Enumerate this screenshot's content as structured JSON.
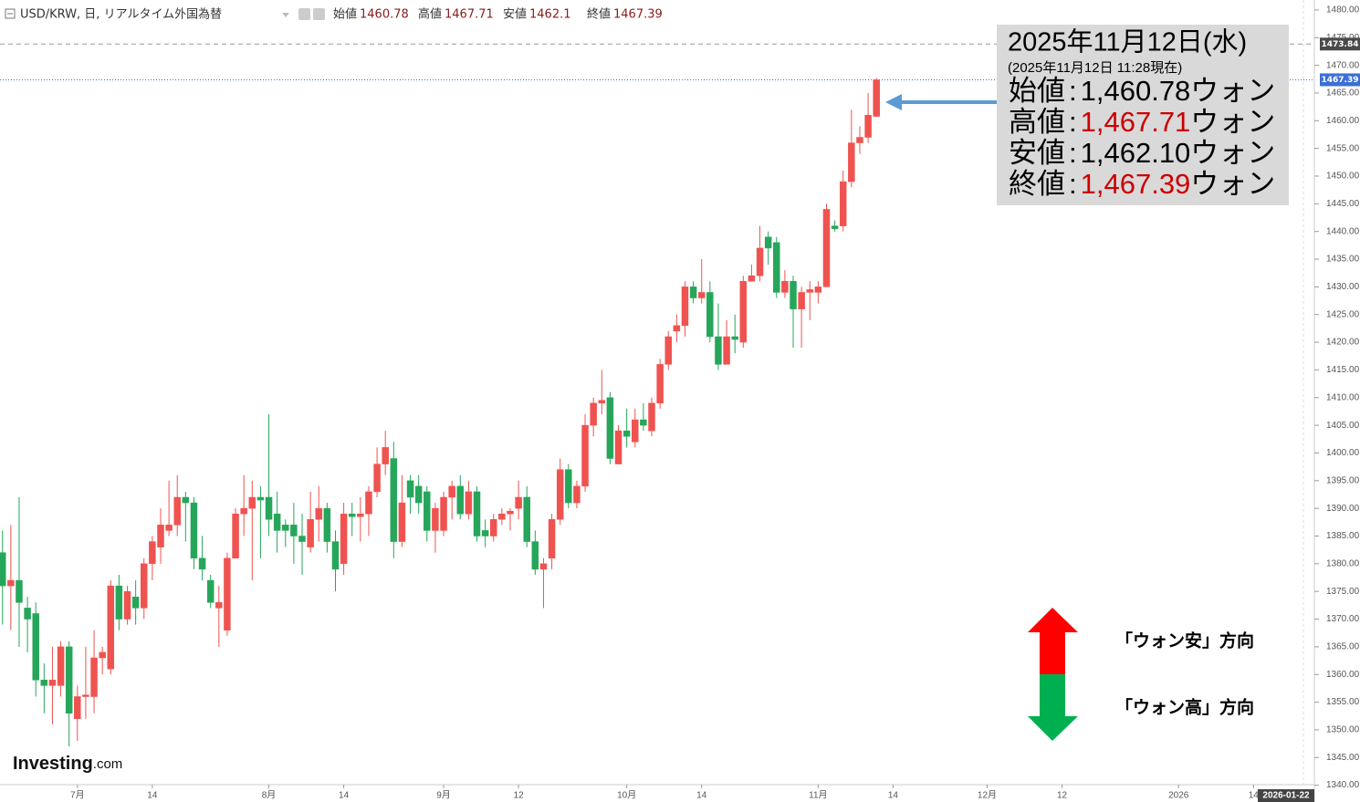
{
  "chart_data": {
    "type": "candlestick",
    "title": "USD/KRW, 日, リアルタイム外国為替",
    "ohlc_labels": [
      "始値",
      "高値",
      "安値",
      "終値"
    ],
    "up_color": "#ef5350",
    "down_color": "#26a65b",
    "open": [
      1382,
      1376,
      1377,
      1372,
      1371,
      1359,
      1358,
      1358,
      1365,
      1352,
      1356,
      1356,
      1363,
      1361,
      1376,
      1370,
      1374,
      1372,
      1380,
      1383,
      1386,
      1387,
      1392,
      1391,
      1381,
      1377,
      1372,
      1368,
      1381,
      1389,
      1390,
      1392,
      1392,
      1389,
      1387,
      1387,
      1385,
      1383,
      1388,
      1390,
      1384,
      1380,
      1389,
      1388.5,
      1389,
      1393,
      1398,
      1399,
      1384,
      1395,
      1394,
      1393,
      1386,
      1386,
      1392,
      1394,
      1389,
      1393,
      1386,
      1385,
      1388,
      1389,
      1390,
      1392,
      1384,
      1379,
      1381,
      1388,
      1397,
      1391,
      1394,
      1405,
      1409,
      1410,
      1398,
      1404,
      1402,
      1406,
      1404,
      1409,
      1416,
      1422,
      1423,
      1430,
      1428,
      1429,
      1421,
      1416,
      1421,
      1420,
      1431,
      1432,
      1439,
      1438,
      1429,
      1431,
      1426,
      1429,
      1429,
      1430,
      1441,
      1441,
      1449,
      1456,
      1457,
      1460.78
    ],
    "high": [
      1386,
      1387,
      1392,
      1374,
      1373,
      1362,
      1365,
      1366,
      1366,
      1358,
      1365,
      1368,
      1365,
      1377,
      1378,
      1376,
      1377,
      1381,
      1385,
      1390,
      1395,
      1396,
      1393,
      1392,
      1385,
      1378,
      1376,
      1382,
      1390,
      1396,
      1395,
      1394,
      1407,
      1393,
      1388,
      1391,
      1389,
      1393,
      1394,
      1391,
      1386,
      1391,
      1391,
      1392,
      1394,
      1401,
      1404,
      1402,
      1396,
      1396,
      1396,
      1394,
      1391,
      1393,
      1395,
      1396,
      1395,
      1394,
      1388,
      1389,
      1390,
      1390,
      1395,
      1394,
      1386,
      1381,
      1389,
      1399,
      1398,
      1395,
      1407,
      1410,
      1415,
      1411,
      1405,
      1408,
      1408,
      1409,
      1410,
      1417,
      1422,
      1425,
      1431,
      1431,
      1435,
      1431,
      1427,
      1424,
      1425,
      1432,
      1434,
      1441,
      1440,
      1439,
      1433,
      1432,
      1430,
      1431,
      1431,
      1445,
      1442,
      1451,
      1462,
      1459,
      1465,
      1467.71
    ],
    "low": [
      1369,
      1368,
      1365,
      1364,
      1356,
      1353,
      1351,
      1356,
      1347,
      1348,
      1352,
      1353,
      1360,
      1360,
      1368,
      1369,
      1369,
      1370,
      1377,
      1380,
      1385,
      1385,
      1384,
      1379,
      1377,
      1372,
      1365,
      1367,
      1381,
      1385,
      1377,
      1381,
      1385,
      1382,
      1383,
      1380,
      1378,
      1382,
      1384,
      1382,
      1375,
      1378,
      1385,
      1384,
      1385,
      1392,
      1396,
      1381,
      1383,
      1389,
      1389,
      1384,
      1382,
      1385,
      1388,
      1388,
      1388,
      1384,
      1383,
      1384,
      1387,
      1386,
      1388,
      1383,
      1378,
      1372,
      1379,
      1387,
      1390,
      1390,
      1393,
      1403,
      1407,
      1398,
      1398,
      1401,
      1401,
      1404,
      1403,
      1408,
      1415,
      1420,
      1421,
      1427,
      1427,
      1420,
      1415,
      1416,
      1418,
      1419,
      1431,
      1431,
      1434,
      1428,
      1428,
      1419,
      1419,
      1424,
      1427,
      1430,
      1440,
      1440,
      1448,
      1454,
      1456,
      1462.1
    ],
    "close": [
      1376,
      1377,
      1373,
      1370,
      1359,
      1358,
      1359,
      1365,
      1353,
      1356,
      1356.3,
      1363,
      1364,
      1376,
      1370,
      1375,
      1372,
      1380,
      1384,
      1387,
      1387,
      1392,
      1391,
      1381,
      1379,
      1373,
      1373,
      1381,
      1389,
      1390,
      1392,
      1391.5,
      1388,
      1386,
      1386,
      1385,
      1384,
      1388,
      1390,
      1384,
      1379,
      1389,
      1388.5,
      1389,
      1393,
      1398,
      1401,
      1384,
      1391,
      1392,
      1391,
      1386,
      1390,
      1392,
      1394,
      1389,
      1393,
      1385,
      1385,
      1388,
      1389,
      1389.5,
      1392,
      1384,
      1379,
      1380,
      1388,
      1397,
      1391,
      1394,
      1405,
      1409,
      1409.5,
      1399,
      1404,
      1403,
      1406,
      1405,
      1409,
      1416,
      1421,
      1423,
      1430,
      1428,
      1429,
      1421,
      1416,
      1421,
      1420.5,
      1431,
      1432,
      1437,
      1437,
      1429,
      1431,
      1426,
      1429,
      1429.5,
      1430,
      1444,
      1440.5,
      1449,
      1456,
      1457,
      1461,
      1467.39
    ],
    "xlim": [
      -0.3,
      156.3
    ],
    "xticks": [
      {
        "value": 9,
        "label": "7月"
      },
      {
        "value": 18,
        "label": "14"
      },
      {
        "value": 32,
        "label": "8月"
      },
      {
        "value": 41,
        "label": "14"
      },
      {
        "value": 53,
        "label": "9月"
      },
      {
        "value": 62,
        "label": "12"
      },
      {
        "value": 75,
        "label": "10月"
      },
      {
        "value": 84,
        "label": "14"
      },
      {
        "value": 98,
        "label": "11月"
      },
      {
        "value": 107,
        "label": "14"
      },
      {
        "value": 118.3,
        "label": "12月"
      },
      {
        "value": 127.3,
        "label": "12"
      },
      {
        "value": 141.3,
        "label": "2026"
      },
      {
        "value": 150.3,
        "label": "14"
      }
    ],
    "cursor_date": "2026-01-22",
    "ylim": [
      1340.1,
      1481.8
    ],
    "yticks": [
      {
        "value": 1340,
        "label": "1340.00"
      },
      {
        "value": 1345,
        "label": "1345.00"
      },
      {
        "value": 1350,
        "label": "1350.00"
      },
      {
        "value": 1355,
        "label": "1355.00"
      },
      {
        "value": 1360,
        "label": "1360.00"
      },
      {
        "value": 1365,
        "label": "1365.00"
      },
      {
        "value": 1370,
        "label": "1370.00"
      },
      {
        "value": 1375,
        "label": "1375.00"
      },
      {
        "value": 1380,
        "label": "1380.00"
      },
      {
        "value": 1385,
        "label": "1385.00"
      },
      {
        "value": 1390,
        "label": "1390.00"
      },
      {
        "value": 1395,
        "label": "1395.00"
      },
      {
        "value": 1400,
        "label": "1400.00"
      },
      {
        "value": 1405,
        "label": "1405.00"
      },
      {
        "value": 1410,
        "label": "1410.00"
      },
      {
        "value": 1415,
        "label": "1415.00"
      },
      {
        "value": 1420,
        "label": "1420.00"
      },
      {
        "value": 1425,
        "label": "1425.00"
      },
      {
        "value": 1430,
        "label": "1430.00"
      },
      {
        "value": 1435,
        "label": "1435.00"
      },
      {
        "value": 1440,
        "label": "1440.00"
      },
      {
        "value": 1445,
        "label": "1445.00"
      },
      {
        "value": 1450,
        "label": "1450.00"
      },
      {
        "value": 1455,
        "label": "1455.00"
      },
      {
        "value": 1460,
        "label": "1460.00"
      },
      {
        "value": 1465,
        "label": "1465.00"
      },
      {
        "value": 1470,
        "label": "1470.00"
      },
      {
        "value": 1475,
        "label": "1475.00"
      },
      {
        "value": 1480,
        "label": "1480.00"
      }
    ],
    "hline": 1473.84,
    "annotation": {
      "date": "2025年11月12日(水)",
      "asof": "(2025年11月12日 11:28現在)",
      "rows": [
        {
          "label": "始値",
          "sep": ":",
          "value": "1,460.78",
          "unit": "ウォン",
          "color": "#000000"
        },
        {
          "label": "高値",
          "sep": ":",
          "value": "1,467.71",
          "unit": "ウォン",
          "color": "#cc0000"
        },
        {
          "label": "安値",
          "sep": ":",
          "value": "1,462.10",
          "unit": "ウォン",
          "color": "#000000"
        },
        {
          "label": "終値",
          "sep": ":",
          "value": "1,467.39",
          "unit": "ウォン",
          "color": "#cc0000"
        }
      ]
    },
    "direction_legend": {
      "up": "「ウォン安」方向",
      "down": "「ウォン高」方向"
    },
    "logo": {
      "name": "Investing",
      "suffix": ".com"
    }
  }
}
